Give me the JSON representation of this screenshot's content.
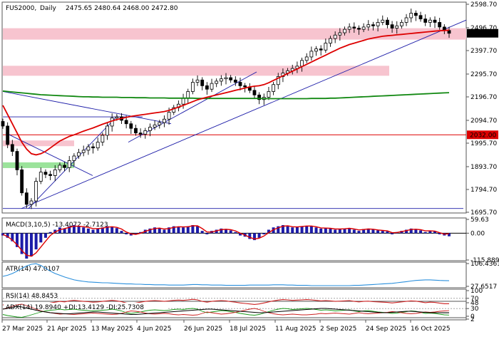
{
  "header": {
    "symbol": "FUS2000,",
    "timeframe": "Daily",
    "ohlc": "2475.65 2480.64 2468.00 2472.80"
  },
  "colors": {
    "candle": "#000000",
    "ma_fast": "#dd0000",
    "ma_slow": "#118811",
    "trendline": "#1c1ca8",
    "zone": "#f7c4cf",
    "zone_green": "#9be39b",
    "macd_hist": "#1c1ca8",
    "macd_signal": "#dd0000",
    "atr": "#2a8fdc",
    "rsi": "#cc2222",
    "adx": "#000000",
    "di_plus": "#1a9a1a",
    "di_minus": "#cc2222"
  },
  "chart_data": [
    {
      "type": "line",
      "name": "price",
      "title": "FUS2000,.Daily 2475.65 2480.64 2468.00 2472.80",
      "x_categories": [
        "27 Mar 2025",
        "21 Apr 2025",
        "13 May 2025",
        "4 Jun 2025",
        "26 Jun 2025",
        "18 Jul 2025",
        "11 Aug 2025",
        "2 Sep 2025",
        "24 Sep 2025",
        "16 Oct 2025"
      ],
      "y_ticks": [
        "2598.70",
        "2496.70",
        "2397.70",
        "2295.70",
        "2196.70",
        "2094.70",
        "1995.70",
        "1893.70",
        "1794.70",
        "1695.70"
      ],
      "ylim": [
        1695.7,
        2598.7
      ],
      "last_price_label": "2472.80",
      "level_label": "2032.00",
      "close_series": [
        2070,
        1990,
        1960,
        1880,
        1780,
        1730,
        1745,
        1830,
        1870,
        1860,
        1855,
        1880,
        1900,
        1890,
        1920,
        1940,
        1955,
        1965,
        1980,
        1975,
        2000,
        2030,
        2070,
        2105,
        2110,
        2095,
        2080,
        2060,
        2040,
        2035,
        2050,
        2065,
        2075,
        2085,
        2100,
        2130,
        2150,
        2165,
        2190,
        2220,
        2260,
        2270,
        2245,
        2230,
        2255,
        2265,
        2275,
        2280,
        2270,
        2260,
        2245,
        2240,
        2225,
        2205,
        2185,
        2195,
        2220,
        2250,
        2285,
        2300,
        2310,
        2320,
        2330,
        2355,
        2370,
        2395,
        2405,
        2400,
        2430,
        2450,
        2465,
        2475,
        2490,
        2500,
        2495,
        2490,
        2500,
        2510,
        2505,
        2520,
        2530,
        2510,
        2495,
        2505,
        2520,
        2540,
        2560,
        2550,
        2535,
        2520,
        2530,
        2520,
        2500,
        2485,
        2472.8
      ],
      "ma_fast": [
        2160,
        2120,
        2080,
        2040,
        2000,
        1970,
        1950,
        1945,
        1950,
        1960,
        1975,
        1990,
        2005,
        2015,
        2025,
        2032,
        2040,
        2048,
        2055,
        2062,
        2070,
        2078,
        2085,
        2092,
        2098,
        2103,
        2108,
        2112,
        2115,
        2118,
        2121,
        2124,
        2127,
        2130,
        2133,
        2138,
        2145,
        2152,
        2160,
        2168,
        2176,
        2184,
        2190,
        2195,
        2200,
        2205,
        2210,
        2215,
        2220,
        2225,
        2230,
        2235,
        2240,
        2243,
        2245,
        2250,
        2258,
        2268,
        2278,
        2288,
        2298,
        2308,
        2318,
        2328,
        2338,
        2348,
        2358,
        2368,
        2378,
        2388,
        2398,
        2408,
        2416,
        2424,
        2430,
        2436,
        2442,
        2448,
        2452,
        2456,
        2460,
        2462,
        2464,
        2466,
        2468,
        2470,
        2472,
        2474,
        2476,
        2478,
        2480,
        2482,
        2484,
        2485,
        2486
      ],
      "ma_slow": [
        2222,
        2220,
        2218,
        2216,
        2214,
        2212,
        2210,
        2208,
        2206,
        2205,
        2204,
        2203,
        2202,
        2201,
        2200,
        2199,
        2198,
        2197,
        2197,
        2196,
        2196,
        2195,
        2195,
        2195,
        2195,
        2194,
        2194,
        2194,
        2193,
        2193,
        2193,
        2192,
        2192,
        2192,
        2192,
        2191,
        2191,
        2191,
        2191,
        2191,
        2191,
        2190,
        2190,
        2190,
        2190,
        2190,
        2190,
        2190,
        2190,
        2190,
        2190,
        2190,
        2190,
        2190,
        2190,
        2189,
        2189,
        2189,
        2189,
        2189,
        2189,
        2189,
        2189,
        2189,
        2189,
        2190,
        2190,
        2190,
        2190,
        2191,
        2191,
        2192,
        2193,
        2194,
        2195,
        2196,
        2197,
        2198,
        2199,
        2200,
        2201,
        2202,
        2203,
        2204,
        2205,
        2206,
        2207,
        2208,
        2209,
        2210,
        2211,
        2212,
        2213,
        2214,
        2215
      ]
    },
    {
      "type": "bar",
      "name": "macd",
      "label": "MACD(3,10,5) -13.4072 -2.7123",
      "y_ticks": [
        "59.63",
        "0.00",
        "-115.889"
      ],
      "ylim": [
        -115.889,
        59.63
      ],
      "hist": [
        -10,
        -20,
        -35,
        -60,
        -90,
        -110,
        -100,
        -70,
        -40,
        -20,
        5,
        15,
        25,
        20,
        30,
        35,
        30,
        25,
        20,
        15,
        20,
        25,
        30,
        28,
        22,
        10,
        -5,
        -10,
        -5,
        5,
        15,
        20,
        25,
        20,
        15,
        25,
        30,
        28,
        25,
        30,
        35,
        30,
        10,
        -5,
        10,
        15,
        20,
        18,
        12,
        5,
        -10,
        -15,
        -25,
        -30,
        -20,
        -5,
        15,
        25,
        30,
        35,
        30,
        25,
        28,
        30,
        32,
        30,
        25,
        20,
        22,
        20,
        15,
        18,
        20,
        22,
        15,
        10,
        18,
        20,
        15,
        12,
        10,
        8,
        -5,
        5,
        10,
        15,
        20,
        18,
        12,
        5,
        10,
        8,
        -5,
        -10,
        -13.4
      ],
      "signal": [
        -5,
        -15,
        -30,
        -50,
        -75,
        -95,
        -100,
        -85,
        -60,
        -35,
        -10,
        5,
        15,
        20,
        25,
        30,
        30,
        28,
        25,
        20,
        20,
        22,
        26,
        28,
        25,
        18,
        5,
        -3,
        -5,
        0,
        8,
        15,
        20,
        22,
        18,
        20,
        25,
        28,
        27,
        28,
        32,
        32,
        20,
        5,
        5,
        10,
        15,
        17,
        15,
        10,
        0,
        -8,
        -18,
        -25,
        -22,
        -12,
        2,
        15,
        23,
        30,
        32,
        28,
        27,
        29,
        31,
        31,
        28,
        23,
        22,
        21,
        18,
        18,
        19,
        21,
        18,
        14,
        16,
        18,
        17,
        14,
        12,
        10,
        2,
        3,
        7,
        11,
        16,
        17,
        15,
        10,
        10,
        9,
        2,
        -4,
        -2.7
      ]
    },
    {
      "type": "line",
      "name": "atr",
      "label": "ATR(14) 47.0107",
      "y_ticks": [
        "106.4361",
        "27.6517"
      ],
      "ylim": [
        27.6517,
        106.4361
      ],
      "values": [
        62,
        66,
        72,
        80,
        90,
        98,
        104,
        106,
        100,
        90,
        80,
        72,
        66,
        60,
        55,
        50,
        47,
        45,
        43,
        42,
        41,
        40,
        40,
        39,
        38,
        37,
        36,
        36,
        35,
        35,
        34,
        34,
        33,
        33,
        33,
        32,
        32,
        32,
        32,
        33,
        34,
        34,
        33,
        33,
        32,
        32,
        32,
        31,
        31,
        31,
        31,
        31,
        32,
        32,
        32,
        32,
        32,
        33,
        33,
        33,
        32,
        32,
        31,
        31,
        31,
        30,
        30,
        30,
        30,
        30,
        30,
        30,
        30,
        30,
        31,
        31,
        32,
        33,
        34,
        35,
        36,
        37,
        38,
        40,
        42,
        44,
        46,
        48,
        49,
        50,
        50,
        49,
        48,
        47.5,
        47.0
      ]
    },
    {
      "type": "line",
      "name": "rsi",
      "label": "RSI(14) 48.8453",
      "y_ticks": [
        "100",
        "70",
        "30",
        "0"
      ],
      "ylim": [
        0,
        100
      ],
      "values": [
        45,
        40,
        35,
        32,
        30,
        34,
        40,
        45,
        50,
        48,
        52,
        55,
        58,
        56,
        60,
        62,
        60,
        58,
        57,
        55,
        56,
        58,
        60,
        62,
        60,
        57,
        52,
        50,
        52,
        55,
        58,
        60,
        61,
        60,
        58,
        60,
        62,
        63,
        62,
        64,
        66,
        64,
        58,
        55,
        58,
        60,
        61,
        60,
        57,
        55,
        52,
        50,
        48,
        46,
        48,
        52,
        56,
        60,
        63,
        65,
        64,
        62,
        63,
        64,
        65,
        64,
        62,
        60,
        61,
        60,
        58,
        59,
        60,
        61,
        58,
        56,
        58,
        59,
        57,
        56,
        55,
        54,
        52,
        54,
        56,
        58,
        60,
        59,
        56,
        53,
        55,
        54,
        51,
        49,
        48.8
      ]
    },
    {
      "type": "line",
      "name": "adx",
      "label": "ADX(14) 19.8940 +DI:13.4129 -DI:25.7308",
      "y_ticks": [
        "48",
        "2"
      ],
      "ylim": [
        2,
        48
      ],
      "adx": [
        30,
        32,
        35,
        38,
        36,
        33,
        30,
        27,
        24,
        22,
        20,
        19,
        18,
        17,
        17,
        18,
        19,
        20,
        21,
        22,
        22,
        21,
        20,
        19,
        18,
        17,
        16,
        15,
        15,
        16,
        17,
        18,
        19,
        20,
        21,
        22,
        23,
        24,
        25,
        26,
        27,
        28,
        29,
        30,
        30,
        29,
        28,
        27,
        26,
        25,
        24,
        23,
        22,
        21,
        20,
        20,
        21,
        22,
        23,
        24,
        25,
        26,
        27,
        28,
        29,
        30,
        31,
        32,
        32,
        31,
        30,
        29,
        28,
        27,
        26,
        25,
        24,
        23,
        22,
        21,
        20,
        20,
        21,
        22,
        23,
        24,
        24,
        23,
        22,
        21,
        20,
        20,
        20,
        19.9,
        19.9
      ],
      "di_plus": [
        15,
        12,
        10,
        8,
        7,
        10,
        14,
        18,
        22,
        25,
        27,
        28,
        30,
        28,
        29,
        30,
        28,
        27,
        26,
        25,
        26,
        27,
        28,
        30,
        28,
        25,
        20,
        18,
        20,
        22,
        25,
        27,
        28,
        27,
        26,
        27,
        29,
        30,
        29,
        31,
        32,
        30,
        24,
        20,
        22,
        24,
        26,
        25,
        23,
        21,
        18,
        16,
        14,
        13,
        15,
        19,
        23,
        27,
        30,
        32,
        31,
        29,
        30,
        31,
        32,
        31,
        29,
        27,
        28,
        27,
        25,
        26,
        27,
        28,
        25,
        23,
        25,
        26,
        24,
        22,
        21,
        20,
        18,
        19,
        21,
        23,
        25,
        24,
        21,
        18,
        19,
        18,
        16,
        14,
        13.4
      ],
      "di_minus": [
        30,
        34,
        38,
        42,
        44,
        40,
        35,
        30,
        25,
        22,
        20,
        18,
        16,
        17,
        16,
        15,
        16,
        17,
        18,
        19,
        18,
        17,
        16,
        15,
        16,
        18,
        22,
        25,
        24,
        22,
        19,
        17,
        16,
        17,
        18,
        17,
        15,
        14,
        15,
        14,
        13,
        14,
        18,
        22,
        20,
        18,
        16,
        17,
        19,
        21,
        24,
        27,
        30,
        32,
        29,
        24,
        20,
        17,
        15,
        14,
        15,
        16,
        15,
        14,
        14,
        15,
        16,
        18,
        17,
        18,
        19,
        18,
        17,
        16,
        18,
        20,
        18,
        17,
        18,
        19,
        20,
        21,
        23,
        22,
        20,
        18,
        17,
        18,
        20,
        22,
        21,
        22,
        24,
        25,
        25.7
      ]
    }
  ]
}
